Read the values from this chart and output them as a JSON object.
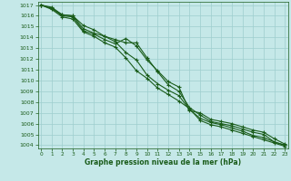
{
  "background_color": "#c5e8e8",
  "grid_color": "#9ecece",
  "line_color": "#1a5c1a",
  "marker_color": "#1a5c1a",
  "text_color": "#1a5c1a",
  "xlabel": "Graphe pression niveau de la mer (hPa)",
  "ylim": [
    1003.7,
    1017.3
  ],
  "xlim": [
    -0.3,
    23.3
  ],
  "yticks": [
    1004,
    1005,
    1006,
    1007,
    1008,
    1009,
    1010,
    1011,
    1012,
    1013,
    1014,
    1015,
    1016,
    1017
  ],
  "xticks": [
    0,
    1,
    2,
    3,
    4,
    5,
    6,
    7,
    8,
    9,
    10,
    11,
    12,
    13,
    14,
    15,
    16,
    17,
    18,
    19,
    20,
    21,
    22,
    23
  ],
  "series": [
    [
      1017.0,
      1016.8,
      1016.1,
      1016.0,
      1014.8,
      1014.4,
      1014.1,
      1013.8,
      1013.5,
      1013.5,
      1012.1,
      1010.8,
      1009.6,
      1009.0,
      1007.5,
      1006.8,
      1006.2,
      1006.0,
      1005.8,
      1005.5,
      1005.2,
      1005.0,
      1004.3,
      1004.0
    ],
    [
      1017.0,
      1016.7,
      1016.0,
      1015.9,
      1014.6,
      1014.3,
      1013.8,
      1013.4,
      1013.9,
      1013.2,
      1011.9,
      1010.9,
      1009.9,
      1009.4,
      1007.2,
      1007.0,
      1006.4,
      1006.2,
      1006.0,
      1005.7,
      1005.4,
      1005.2,
      1004.6,
      1004.1
    ],
    [
      1017.0,
      1016.7,
      1016.1,
      1016.0,
      1015.1,
      1014.7,
      1014.1,
      1013.6,
      1012.6,
      1011.9,
      1010.5,
      1009.7,
      1009.1,
      1008.6,
      1007.3,
      1006.5,
      1006.1,
      1005.9,
      1005.6,
      1005.3,
      1004.9,
      1004.7,
      1004.3,
      1004.0
    ],
    [
      1017.0,
      1016.6,
      1015.9,
      1015.7,
      1014.5,
      1014.1,
      1013.5,
      1013.1,
      1012.1,
      1010.9,
      1010.2,
      1009.3,
      1008.7,
      1008.1,
      1007.4,
      1006.3,
      1005.9,
      1005.7,
      1005.4,
      1005.1,
      1004.8,
      1004.5,
      1004.2,
      1003.9
    ]
  ]
}
